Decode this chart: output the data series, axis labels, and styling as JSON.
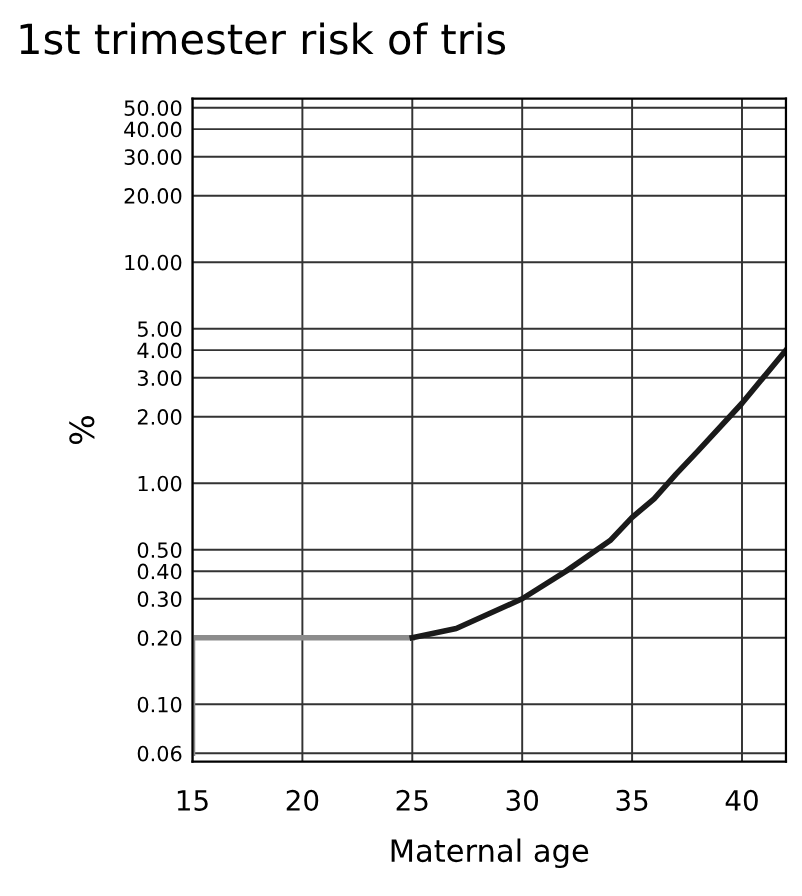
{
  "chart_data": {
    "type": "line",
    "title": "1st trimester risk of tris",
    "xlabel": "Maternal age",
    "ylabel": "%",
    "series": [
      {
        "color": "#8c8c8c",
        "x": [
          15,
          15,
          25
        ],
        "values": [
          0.06,
          0.2,
          0.2
        ]
      },
      {
        "color": "#1a1a1a",
        "x": [
          25,
          27,
          30,
          32,
          34,
          35,
          36,
          37,
          38,
          40,
          42
        ],
        "values": [
          0.2,
          0.22,
          0.3,
          0.4,
          0.55,
          0.7,
          0.85,
          1.1,
          1.4,
          2.3,
          4.0
        ]
      }
    ],
    "xlim": [
      15,
      42
    ],
    "xticks": [
      15,
      20,
      25,
      30,
      35,
      40
    ],
    "ylim": [
      0.055,
      55
    ],
    "log": true,
    "yticks": [
      {
        "value": 0.06,
        "label": "0.06"
      },
      {
        "value": 0.1,
        "label": "0.10"
      },
      {
        "value": 0.2,
        "label": "0.20"
      },
      {
        "value": 0.3,
        "label": "0.30"
      },
      {
        "value": 0.4,
        "label": "0.40"
      },
      {
        "value": 0.5,
        "label": "0.50"
      },
      {
        "value": 1,
        "label": "1.00"
      },
      {
        "value": 2,
        "label": "2.00"
      },
      {
        "value": 3,
        "label": "3.00"
      },
      {
        "value": 4,
        "label": "4.00"
      },
      {
        "value": 5,
        "label": "5.00"
      },
      {
        "value": 10,
        "label": "10.00"
      },
      {
        "value": 20,
        "label": "20.00"
      },
      {
        "value": 30,
        "label": "30.00"
      },
      {
        "value": 40,
        "label": "40.00"
      },
      {
        "value": 50,
        "label": "50.00"
      }
    ],
    "grid": true,
    "marker": "none",
    "line_style": "solid"
  }
}
